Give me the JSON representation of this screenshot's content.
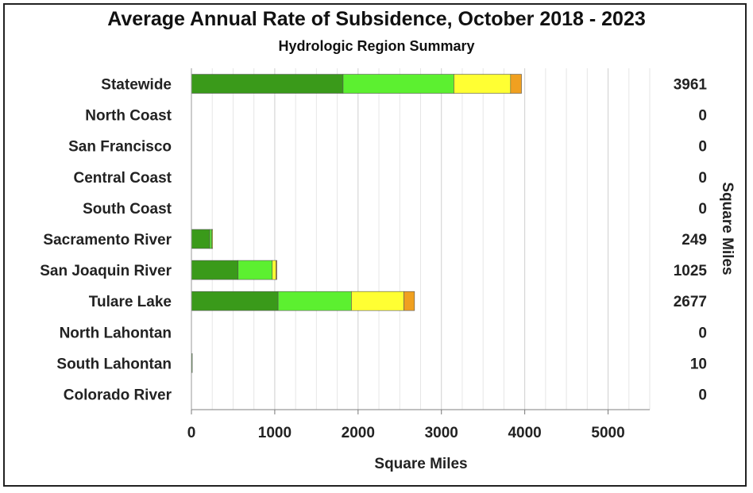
{
  "title": "Average Annual Rate of Subsidence, October 2018 - 2023",
  "subtitle": "Hydrologic Region Summary",
  "chart_data": {
    "type": "bar",
    "orientation": "horizontal",
    "stacked": true,
    "title": "Average Annual Rate of Subsidence, October 2018 - 2023",
    "subtitle": "Hydrologic Region Summary",
    "xlabel": "Square Miles",
    "right_label": "Square Miles",
    "xlim": [
      0,
      5500
    ],
    "xticks": [
      0,
      1000,
      2000,
      3000,
      4000,
      5000
    ],
    "grid": "vertical",
    "categories": [
      "Statewide",
      "North Coast",
      "San Francisco",
      "Central Coast",
      "South Coast",
      "Sacramento River",
      "San Joaquin River",
      "Tulare Lake",
      "North Lahontan",
      "South Lahontan",
      "Colorado River"
    ],
    "totals": [
      "3961",
      "0",
      "0",
      "0",
      "0",
      "249",
      "1025",
      "2677",
      "0",
      "10",
      "0"
    ],
    "series": [
      {
        "color": "#3a9a1a",
        "values": [
          1820,
          0,
          0,
          0,
          0,
          220,
          560,
          1040,
          0,
          10,
          0
        ]
      },
      {
        "color": "#5cf030",
        "values": [
          1330,
          0,
          0,
          0,
          0,
          25,
          410,
          880,
          0,
          0,
          0
        ]
      },
      {
        "color": "#ffff33",
        "values": [
          680,
          0,
          0,
          0,
          0,
          4,
          45,
          630,
          0,
          0,
          0
        ]
      },
      {
        "color": "#f0a020",
        "values": [
          131,
          0,
          0,
          0,
          0,
          0,
          10,
          127,
          0,
          0,
          0
        ]
      }
    ]
  }
}
